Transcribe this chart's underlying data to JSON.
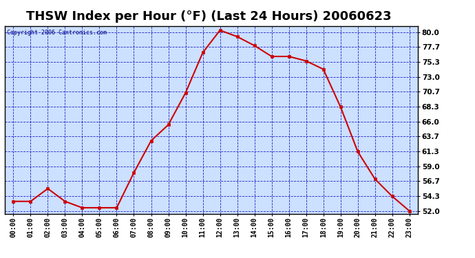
{
  "title": "THSW Index per Hour (°F) (Last 24 Hours) 20060623",
  "copyright": "Copyright 2006 Cantronics.com",
  "x_labels": [
    "00:00",
    "01:00",
    "02:00",
    "03:00",
    "04:00",
    "05:00",
    "06:00",
    "07:00",
    "08:00",
    "09:00",
    "10:00",
    "11:00",
    "12:00",
    "13:00",
    "14:00",
    "15:00",
    "16:00",
    "17:00",
    "18:00",
    "19:00",
    "20:00",
    "21:00",
    "22:00",
    "23:00"
  ],
  "y_values": [
    53.5,
    53.5,
    55.5,
    53.5,
    52.5,
    52.5,
    52.5,
    58.0,
    63.0,
    65.5,
    70.5,
    76.8,
    80.3,
    79.3,
    77.9,
    76.2,
    76.2,
    75.5,
    74.2,
    68.3,
    61.3,
    57.0,
    54.3,
    52.0
  ],
  "line_color": "#cc0000",
  "marker_color": "#cc0000",
  "outer_bg": "#ffffff",
  "plot_bg": "#cce0ff",
  "grid_color": "#0000bb",
  "text_color": "#000000",
  "title_color": "#000000",
  "copyright_color": "#000080",
  "yticks": [
    52.0,
    54.3,
    56.7,
    59.0,
    61.3,
    63.7,
    66.0,
    68.3,
    70.7,
    73.0,
    75.3,
    77.7,
    80.0
  ],
  "ylim": [
    51.5,
    81.0
  ],
  "xlim": [
    -0.5,
    23.5
  ],
  "title_fontsize": 13,
  "tick_fontsize": 7,
  "copyright_fontsize": 6,
  "linewidth": 1.5,
  "markersize": 3
}
